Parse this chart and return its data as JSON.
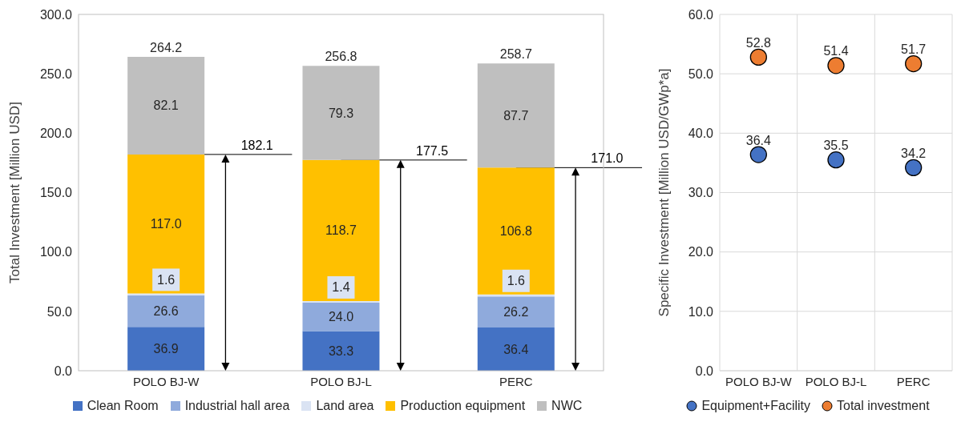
{
  "chart_data": [
    {
      "type": "bar",
      "stacked": true,
      "categories": [
        "POLO BJ-W",
        "POLO BJ-L",
        "PERC"
      ],
      "ylabel": "Total Investment [Million USD]",
      "ylim": [
        0,
        300
      ],
      "yticks": [
        {
          "value": 0,
          "label": "0.0"
        },
        {
          "value": 50,
          "label": "50.0"
        },
        {
          "value": 100,
          "label": "100.0"
        },
        {
          "value": 150,
          "label": "150.0"
        },
        {
          "value": 200,
          "label": "200.0"
        },
        {
          "value": 250,
          "label": "250.0"
        },
        {
          "value": 300,
          "label": "300.0"
        }
      ],
      "grid": false,
      "legend": "bottom",
      "series": [
        {
          "name": "Clean Room",
          "color": "#4472c4",
          "values": [
            36.9,
            33.3,
            36.4
          ],
          "value_labels": [
            "36.9",
            "33.3",
            "36.4"
          ]
        },
        {
          "name": "Industrial hall area",
          "color": "#8faadc",
          "values": [
            26.6,
            24.0,
            26.2
          ],
          "value_labels": [
            "26.6",
            "24.0",
            "26.2"
          ]
        },
        {
          "name": "Land area",
          "color": "#dae3f3",
          "values": [
            1.6,
            1.4,
            1.6
          ],
          "value_labels": [
            "1.6",
            "1.4",
            "1.6"
          ]
        },
        {
          "name": "Production equipment",
          "color": "#ffc000",
          "values": [
            117.0,
            118.7,
            106.8
          ],
          "value_labels": [
            "117.0",
            "118.7",
            "106.8"
          ]
        },
        {
          "name": "NWC",
          "color": "#bfbfbf",
          "values": [
            82.1,
            79.3,
            87.7
          ],
          "value_labels": [
            "82.1",
            "79.3",
            "87.7"
          ]
        }
      ],
      "totals": [
        "264.2",
        "256.8",
        "258.7"
      ],
      "annotations": [
        "182.1",
        "177.5",
        "171.0"
      ]
    },
    {
      "type": "scatter",
      "categories": [
        "POLO BJ-W",
        "POLO BJ-L",
        "PERC"
      ],
      "ylabel": "Specific Investment [Million USD/GWp*a]",
      "ylim": [
        0,
        60
      ],
      "yticks": [
        {
          "value": 0,
          "label": "0.0"
        },
        {
          "value": 10,
          "label": "10.0"
        },
        {
          "value": 20,
          "label": "20.0"
        },
        {
          "value": 30,
          "label": "30.0"
        },
        {
          "value": 40,
          "label": "40.0"
        },
        {
          "value": 50,
          "label": "50.0"
        },
        {
          "value": 60,
          "label": "60.0"
        }
      ],
      "grid": true,
      "legend": "bottom",
      "marker": "circle",
      "series": [
        {
          "name": "Equipment+Facility",
          "color": "#4472c4",
          "values": [
            36.4,
            35.5,
            34.2
          ],
          "value_labels": [
            "36.4",
            "35.5",
            "34.2"
          ]
        },
        {
          "name": "Total investment",
          "color": "#ed7d31",
          "values": [
            52.8,
            51.4,
            51.7
          ],
          "value_labels": [
            "52.8",
            "51.4",
            "51.7"
          ]
        }
      ]
    }
  ]
}
